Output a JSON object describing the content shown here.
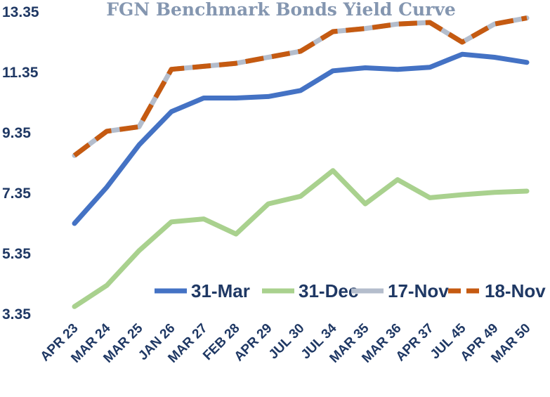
{
  "chart_data": {
    "type": "line",
    "title": "FGN Benchmark Bonds Yield Curve",
    "xlabel": "",
    "ylabel": "",
    "categories": [
      "APR 23",
      "MAR 24",
      "MAR 25",
      "JAN 26",
      "MAR 27",
      "FEB 28",
      "APR 29",
      "JUL 30",
      "JUL 34",
      "MAR 35",
      "MAR 36",
      "APR 37",
      "JUL 45",
      "APR 49",
      "MAR 50"
    ],
    "yticks": [
      "13.35",
      "11.35",
      "9.35",
      "7.35",
      "5.35",
      "3.35"
    ],
    "ylim": [
      3.35,
      13.35
    ],
    "grid": false,
    "legend_position": "bottom-right",
    "series": [
      {
        "name": "31-Mar",
        "color": "#4472c4",
        "dash": "solid",
        "values": [
          6.35,
          7.55,
          8.95,
          10.05,
          10.5,
          10.5,
          10.55,
          10.75,
          11.4,
          11.5,
          11.45,
          11.52,
          11.95,
          11.85,
          11.68
        ]
      },
      {
        "name": "31-Dec",
        "color": "#a9d18e",
        "dash": "solid",
        "values": [
          3.6,
          4.3,
          5.45,
          6.4,
          6.5,
          6.0,
          7.0,
          7.25,
          8.1,
          7.0,
          7.8,
          7.2,
          7.3,
          7.38,
          7.42
        ]
      },
      {
        "name": "17-Nov",
        "color": "#b4bdcc",
        "dash": "solid",
        "values": [
          8.6,
          9.4,
          9.55,
          11.45,
          11.55,
          11.65,
          11.85,
          12.05,
          12.7,
          12.8,
          12.95,
          13.0,
          12.35,
          12.95,
          13.15
        ]
      },
      {
        "name": "18-Nov",
        "color": "#c55a11",
        "dash": "dashed",
        "values": [
          8.6,
          9.4,
          9.55,
          11.45,
          11.55,
          11.65,
          11.85,
          12.05,
          12.7,
          12.8,
          12.95,
          13.0,
          12.35,
          12.95,
          13.15
        ]
      }
    ]
  }
}
